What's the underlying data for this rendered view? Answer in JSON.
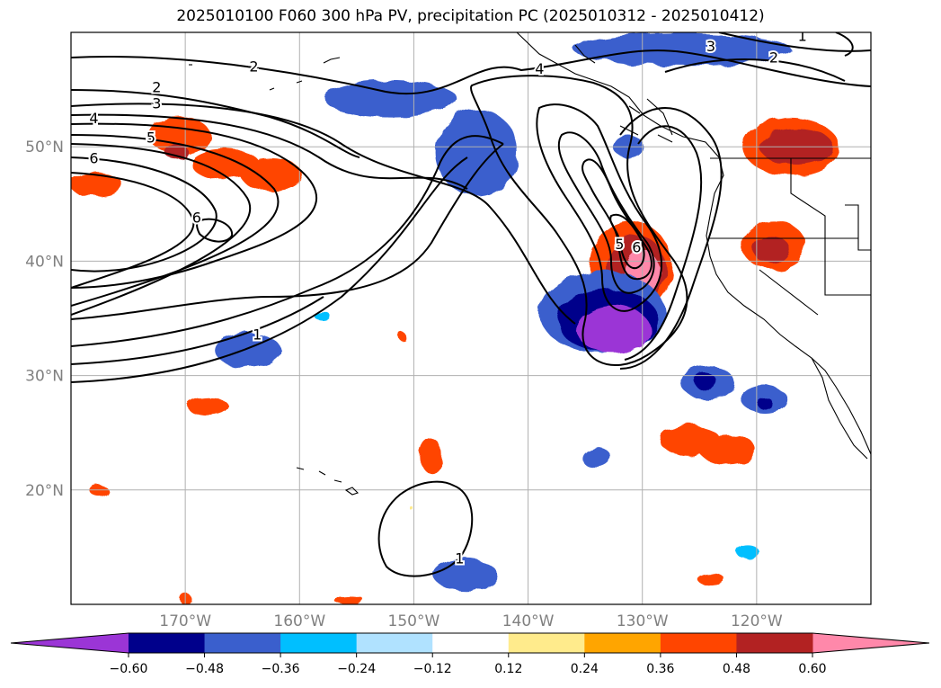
{
  "title": "2025010100 F060 300 hPa PV, precipitation PC (2025010312 - 2025010412)",
  "chart_data": {
    "type": "map-contour",
    "title": "2025010100 F060 300 hPa PV, precipitation PC (2025010312 - 2025010412)",
    "variables": [
      "300 hPa PV (contours)",
      "precipitation PC (shaded)"
    ],
    "lon_range": [
      -180,
      -110
    ],
    "lat_range": [
      10,
      60
    ],
    "x_ticks": [
      {
        "value": -170,
        "label": "170°W"
      },
      {
        "value": -160,
        "label": "160°W"
      },
      {
        "value": -150,
        "label": "150°W"
      },
      {
        "value": -140,
        "label": "140°W"
      },
      {
        "value": -130,
        "label": "130°W"
      },
      {
        "value": -120,
        "label": "120°W"
      }
    ],
    "y_ticks": [
      {
        "value": 20,
        "label": "20°N"
      },
      {
        "value": 30,
        "label": "30°N"
      },
      {
        "value": 40,
        "label": "40°N"
      },
      {
        "value": 50,
        "label": "50°N"
      }
    ],
    "grid": true,
    "colorbar": {
      "orientation": "horizontal",
      "extend": "both",
      "levels": [
        -0.6,
        -0.48,
        -0.36,
        -0.24,
        -0.12,
        0.12,
        0.24,
        0.36,
        0.48,
        0.6
      ],
      "tick_labels": [
        "−0.60",
        "−0.48",
        "−0.36",
        "−0.24",
        "−0.12",
        "0.12",
        "0.24",
        "0.36",
        "0.48",
        "0.60"
      ],
      "colors": [
        "#9b35d6",
        "#00008b",
        "#3a5fcd",
        "#00bfff",
        "#b0e2ff",
        "#ffffff",
        "#ffeb8c",
        "#ffa500",
        "#ff4500",
        "#b22222",
        "#ff88aa"
      ]
    },
    "pv_contour_labels": [
      {
        "lon": -164.0,
        "lat": 57.0,
        "text": "2"
      },
      {
        "lon": -172.5,
        "lat": 55.2,
        "text": "2"
      },
      {
        "lon": -172.5,
        "lat": 53.8,
        "text": "3"
      },
      {
        "lon": -178.0,
        "lat": 52.5,
        "text": "4"
      },
      {
        "lon": -173.0,
        "lat": 50.8,
        "text": "5"
      },
      {
        "lon": -178.0,
        "lat": 49.0,
        "text": "6"
      },
      {
        "lon": -169.0,
        "lat": 43.8,
        "text": "6"
      },
      {
        "lon": -132.0,
        "lat": 41.5,
        "text": "5"
      },
      {
        "lon": -130.5,
        "lat": 41.2,
        "text": "6"
      },
      {
        "lon": -139.0,
        "lat": 56.8,
        "text": "4"
      },
      {
        "lon": -124.0,
        "lat": 58.8,
        "text": "3"
      },
      {
        "lon": -118.5,
        "lat": 57.8,
        "text": "2"
      },
      {
        "lon": -116.0,
        "lat": 59.7,
        "text": "1"
      },
      {
        "lon": -163.7,
        "lat": 33.6,
        "text": "1"
      },
      {
        "lon": -146.0,
        "lat": 14.0,
        "text": "1"
      }
    ],
    "precip_regions": [
      {
        "lon": -170.5,
        "lat": 51.0,
        "rx": 2.7,
        "ry": 1.6,
        "value": 0.4
      },
      {
        "lon": -166.5,
        "lat": 48.5,
        "rx": 3.0,
        "ry": 1.3,
        "value": 0.4
      },
      {
        "lon": -162.5,
        "lat": 47.6,
        "rx": 2.7,
        "ry": 1.4,
        "value": 0.4
      },
      {
        "lon": -170.8,
        "lat": 49.6,
        "rx": 1.0,
        "ry": 0.7,
        "value": 0.5
      },
      {
        "lon": -177.8,
        "lat": 46.7,
        "rx": 2.3,
        "ry": 1.1,
        "value": 0.4
      },
      {
        "lon": -117.0,
        "lat": 50.0,
        "rx": 4.2,
        "ry": 2.5,
        "value": 0.42
      },
      {
        "lon": -116.5,
        "lat": 50.0,
        "rx": 3.2,
        "ry": 1.6,
        "value": 0.5
      },
      {
        "lon": -118.5,
        "lat": 41.4,
        "rx": 2.8,
        "ry": 2.1,
        "value": 0.4
      },
      {
        "lon": -118.7,
        "lat": 41.0,
        "rx": 1.6,
        "ry": 1.2,
        "value": 0.5
      },
      {
        "lon": -131.0,
        "lat": 39.5,
        "rx": 3.6,
        "ry": 4.0,
        "value": 0.4
      },
      {
        "lon": -130.5,
        "lat": 39.3,
        "rx": 2.5,
        "ry": 3.0,
        "value": 0.5
      },
      {
        "lon": -130.0,
        "lat": 39.0,
        "rx": 1.5,
        "ry": 2.0,
        "value": 0.65
      },
      {
        "lon": -125.8,
        "lat": 24.3,
        "rx": 2.6,
        "ry": 1.4,
        "value": 0.4
      },
      {
        "lon": -122.5,
        "lat": 23.5,
        "rx": 2.5,
        "ry": 1.3,
        "value": 0.4
      },
      {
        "lon": -168.0,
        "lat": 27.3,
        "rx": 1.8,
        "ry": 0.8,
        "value": 0.4
      },
      {
        "lon": -148.5,
        "lat": 23.0,
        "rx": 1.0,
        "ry": 1.5,
        "value": 0.4
      },
      {
        "lon": -177.6,
        "lat": 20.0,
        "rx": 0.8,
        "ry": 0.5,
        "value": 0.4
      },
      {
        "lon": -124.0,
        "lat": 12.2,
        "rx": 1.2,
        "ry": 0.5,
        "value": 0.4
      },
      {
        "lon": -155.7,
        "lat": 10.4,
        "rx": 1.3,
        "ry": 0.4,
        "value": 0.4
      },
      {
        "lon": -170.0,
        "lat": 10.5,
        "rx": 0.5,
        "ry": 0.5,
        "value": 0.4
      },
      {
        "lon": -151.0,
        "lat": 33.4,
        "rx": 0.35,
        "ry": 0.35,
        "value": 0.4
      },
      {
        "lon": -150.3,
        "lat": 18.5,
        "rx": 0.15,
        "ry": 0.15,
        "value": 0.2
      },
      {
        "lon": -133.5,
        "lat": 35.5,
        "rx": 5.5,
        "ry": 3.6,
        "value": -0.4
      },
      {
        "lon": -133.0,
        "lat": 34.8,
        "rx": 4.4,
        "ry": 2.8,
        "value": -0.52
      },
      {
        "lon": -132.5,
        "lat": 34.0,
        "rx": 3.2,
        "ry": 2.1,
        "value": -0.65
      },
      {
        "lon": -152.0,
        "lat": 54.2,
        "rx": 5.8,
        "ry": 1.6,
        "value": -0.4
      },
      {
        "lon": -144.5,
        "lat": 49.5,
        "rx": 3.6,
        "ry": 3.8,
        "value": -0.4
      },
      {
        "lon": -126.5,
        "lat": 58.5,
        "rx": 9.5,
        "ry": 1.4,
        "value": -0.4
      },
      {
        "lon": -131.2,
        "lat": 50.0,
        "rx": 1.3,
        "ry": 1.0,
        "value": -0.4
      },
      {
        "lon": -164.5,
        "lat": 32.2,
        "rx": 2.9,
        "ry": 1.5,
        "value": -0.4
      },
      {
        "lon": -124.3,
        "lat": 29.4,
        "rx": 2.3,
        "ry": 1.5,
        "value": -0.4
      },
      {
        "lon": -124.5,
        "lat": 29.5,
        "rx": 1.0,
        "ry": 0.7,
        "value": -0.55
      },
      {
        "lon": -119.3,
        "lat": 27.9,
        "rx": 2.0,
        "ry": 1.2,
        "value": -0.4
      },
      {
        "lon": -119.3,
        "lat": 27.6,
        "rx": 0.7,
        "ry": 0.5,
        "value": -0.55
      },
      {
        "lon": -134.0,
        "lat": 22.8,
        "rx": 1.3,
        "ry": 0.9,
        "value": -0.4
      },
      {
        "lon": -145.5,
        "lat": 12.6,
        "rx": 2.8,
        "ry": 1.4,
        "value": -0.4
      },
      {
        "lon": -120.8,
        "lat": 14.6,
        "rx": 1.0,
        "ry": 0.6,
        "value": -0.3
      },
      {
        "lon": -158.0,
        "lat": 35.2,
        "rx": 0.7,
        "ry": 0.4,
        "value": -0.3
      }
    ]
  }
}
